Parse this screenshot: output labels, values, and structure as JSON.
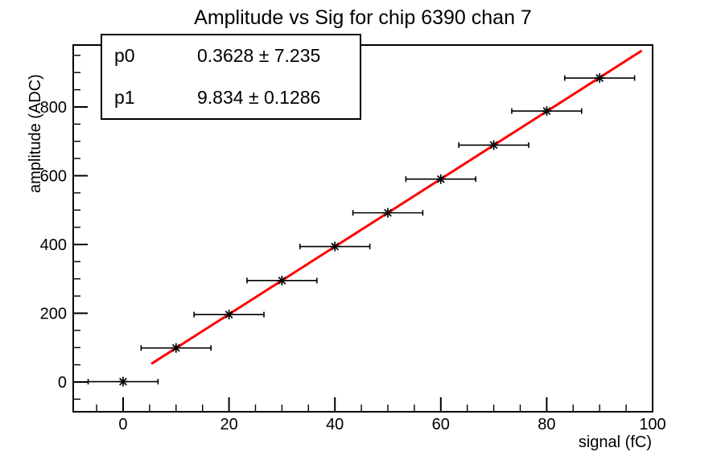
{
  "title": "Amplitude vs Sig for chip 6390 chan 7",
  "stats_box": {
    "rows": [
      {
        "name": "p0",
        "value": "0.3628 ± 7.235"
      },
      {
        "name": "p1",
        "value": "9.834 ± 0.1286"
      }
    ]
  },
  "chart_data": {
    "type": "scatter",
    "title": "Amplitude vs Sig for chip 6390 chan 7",
    "xlabel": "signal (fC)",
    "ylabel": "amplitude (ADC)",
    "x": [
      0,
      10,
      20,
      30,
      40,
      50,
      60,
      70,
      80,
      90
    ],
    "y": [
      1,
      99,
      196,
      295,
      394,
      492,
      590,
      689,
      788,
      884
    ],
    "x_error": 1.5,
    "marker": "asterisk",
    "marker_color": "#000000",
    "fit": {
      "type": "linear",
      "p0": 0.3628,
      "p1": 9.834,
      "x_range": [
        5.5,
        97.8
      ],
      "color": "#ff0000"
    },
    "x_ticks": [
      0,
      20,
      40,
      60,
      80,
      100
    ],
    "y_ticks": [
      0,
      200,
      400,
      600,
      800
    ],
    "x_minor_step": 5,
    "y_minor_step": 50,
    "xlim": [
      -9.42,
      100
    ],
    "ylim": [
      -86.6,
      980
    ],
    "grid": false,
    "legend": "none",
    "frame_color": "#000000",
    "background_color": "#ffffff"
  }
}
